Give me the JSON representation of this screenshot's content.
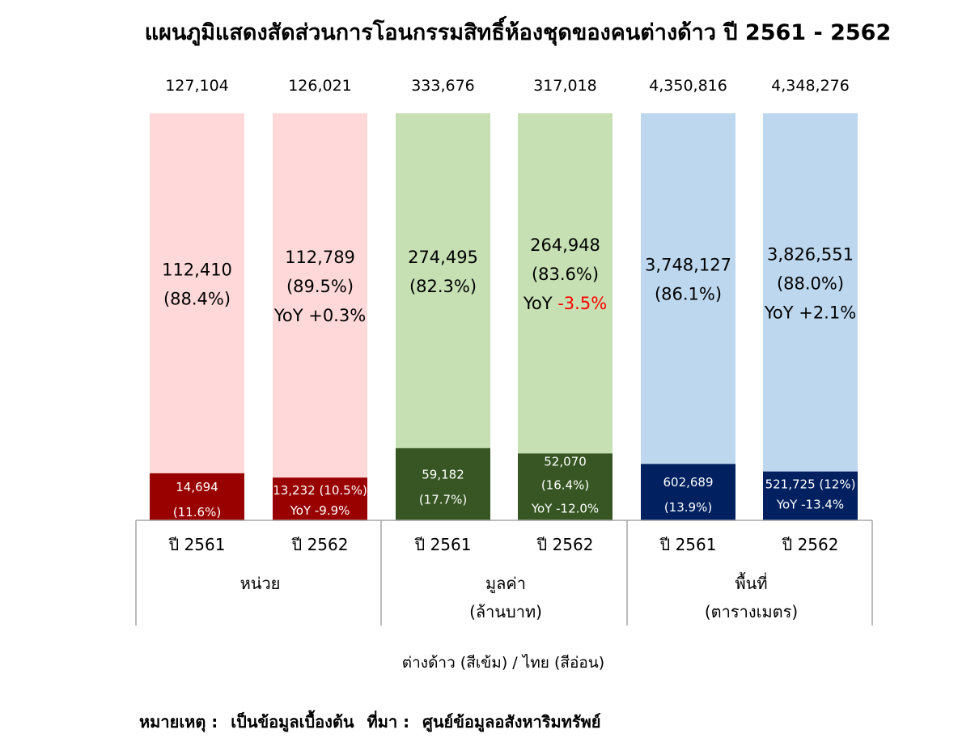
{
  "chart_data": {
    "type": "bar",
    "stacked": true,
    "normalized": true,
    "title": "แผนภูมิแสดงสัดส่วนการโอนกรรมสิทธิ์ห้องชุดของคนต่างด้าว ปี 2561 - 2562",
    "legend_note": "ต่างด้าว (สีเข้ม) / ไทย (สีอ่อน)",
    "footnote": {
      "label": "หมายเหตุ :",
      "note": "เป็นข้อมูลเบื้องต้น",
      "source_label": "ที่มา :",
      "source": "ศูนย์ข้อมูลอสังหาริมทรัพย์"
    },
    "groups": [
      {
        "name": "หน่วย",
        "name_line2": "",
        "light_color": "#ffd9d9",
        "dark_color": "#990000"
      },
      {
        "name": "มูลค่า",
        "name_line2": "(ล้านบาท)",
        "light_color": "#c6e0b4",
        "dark_color": "#375623"
      },
      {
        "name": "พื้นที่",
        "name_line2": "(ตารางเมตร)",
        "light_color": "#bdd7ee",
        "dark_color": "#002060"
      }
    ],
    "bars": [
      {
        "group": 0,
        "category": "ปี 2561",
        "total": 127104,
        "total_label": "127,104",
        "thai": 112410,
        "thai_label": "112,410",
        "thai_pct_label": "(88.4%)",
        "thai_yoy_label": "",
        "foreign": 14694,
        "foreign_label": "14,694",
        "foreign_pct_label": "(11.6%)",
        "foreign_yoy_label": ""
      },
      {
        "group": 0,
        "category": "ปี 2562",
        "total": 126021,
        "total_label": "126,021",
        "thai": 112789,
        "thai_label": "112,789",
        "thai_pct_label": "(89.5%)",
        "thai_yoy_label": "YoY +0.3%",
        "foreign": 13232,
        "foreign_label": "13,232",
        "foreign_pct_label": "(10.5%)",
        "foreign_yoy_label": "YoY -9.9%"
      },
      {
        "group": 1,
        "category": "ปี 2561",
        "total": 333676,
        "total_label": "333,676",
        "thai": 274495,
        "thai_label": "274,495",
        "thai_pct_label": "(82.3%)",
        "thai_yoy_label": "",
        "foreign": 59182,
        "foreign_label": "59,182",
        "foreign_pct_label": "(17.7%)",
        "foreign_yoy_label": ""
      },
      {
        "group": 1,
        "category": "ปี 2562",
        "total": 317018,
        "total_label": "317,018",
        "thai": 264948,
        "thai_label": "264,948",
        "thai_pct_label": "(83.6%)",
        "thai_yoy_label": "YoY -3.5%",
        "foreign": 52070,
        "foreign_label": "52,070",
        "foreign_pct_label": "(16.4%)",
        "foreign_yoy_label": "YoY -12.0%"
      },
      {
        "group": 2,
        "category": "ปี 2561",
        "total": 4350816,
        "total_label": "4,350,816",
        "thai": 3748127,
        "thai_label": "3,748,127",
        "thai_pct_label": "(86.1%)",
        "thai_yoy_label": "",
        "foreign": 602689,
        "foreign_label": "602,689",
        "foreign_pct_label": "(13.9%)",
        "foreign_yoy_label": ""
      },
      {
        "group": 2,
        "category": "ปี 2562",
        "total": 4348276,
        "total_label": "4,348,276",
        "thai": 3826551,
        "thai_label": "3,826,551",
        "thai_pct_label": "(88.0%)",
        "thai_yoy_label": "YoY +2.1%",
        "foreign": 521725,
        "foreign_label": "521,725",
        "foreign_pct_label": "(12%)",
        "foreign_yoy_label": "YoY -13.4%"
      }
    ],
    "colors": {
      "negative_yoy": "#ff0000",
      "axis": "#a6a6a6"
    },
    "grid": false
  }
}
